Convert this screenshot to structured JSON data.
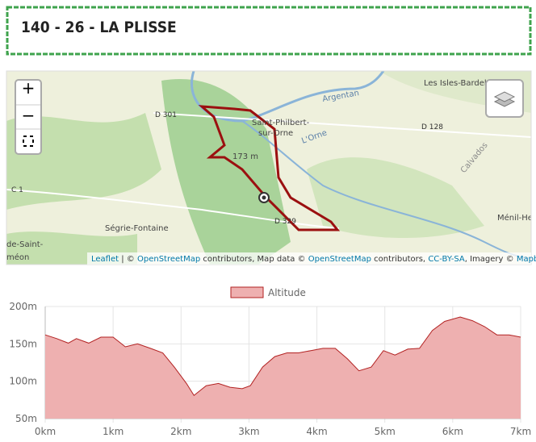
{
  "header": {
    "title": "140 - 26 - LA PLISSE"
  },
  "map": {
    "zoom_in": "+",
    "zoom_out": "−",
    "labels": [
      "D 301",
      "Saint-Philbert-",
      "sur-Orne",
      "173 m",
      "D 329",
      "Ségrie-Fontaine",
      "Les Isles-Bardel",
      "D 128",
      "Argentan",
      "L'Orne",
      "Calvados",
      "Ménil-He",
      "C 1",
      "de-Saint-",
      "méon"
    ],
    "attribution": [
      "Leaflet",
      "| ©",
      "OpenStreetMap",
      "contributors, Map data ©",
      "OpenStreetMap",
      "contributors,",
      "CC-BY-SA",
      ", Imagery ©",
      "Mapbox"
    ]
  },
  "chart_data": {
    "type": "area",
    "legend": "Altitude",
    "color": "#b22222",
    "fill": "#eeb0b0",
    "x": [
      0,
      0.17,
      0.34,
      0.46,
      0.64,
      0.82,
      1.0,
      1.18,
      1.36,
      1.55,
      1.73,
      1.9,
      2.08,
      2.19,
      2.37,
      2.55,
      2.72,
      2.9,
      3.02,
      3.2,
      3.38,
      3.56,
      3.73,
      3.91,
      4.09,
      4.27,
      4.45,
      4.62,
      4.8,
      4.98,
      5.15,
      5.34,
      5.51,
      5.7,
      5.88,
      6.11,
      6.29,
      6.47,
      6.65,
      6.83,
      7.0
    ],
    "values": [
      162,
      157,
      151,
      157,
      151,
      159,
      159,
      146,
      150,
      144,
      138,
      119,
      97,
      81,
      94,
      97,
      92,
      90,
      94,
      119,
      133,
      138,
      138,
      141,
      144,
      144,
      130,
      114,
      119,
      141,
      135,
      143,
      144,
      168,
      180,
      186,
      181,
      173,
      162,
      162,
      159
    ],
    "xlim": [
      0,
      7
    ],
    "xticks": [
      {
        "value": 0,
        "label": "0km"
      },
      {
        "value": 1,
        "label": "1km"
      },
      {
        "value": 2,
        "label": "2km"
      },
      {
        "value": 3,
        "label": "3km"
      },
      {
        "value": 4,
        "label": "4km"
      },
      {
        "value": 5,
        "label": "5km"
      },
      {
        "value": 6,
        "label": "6km"
      },
      {
        "value": 7,
        "label": "7km"
      }
    ],
    "ylim": [
      50,
      200
    ],
    "yticks": [
      {
        "value": 50,
        "label": "50m"
      },
      {
        "value": 100,
        "label": "100m"
      },
      {
        "value": 150,
        "label": "150m"
      },
      {
        "value": 200,
        "label": "200m"
      }
    ],
    "grid": true
  }
}
